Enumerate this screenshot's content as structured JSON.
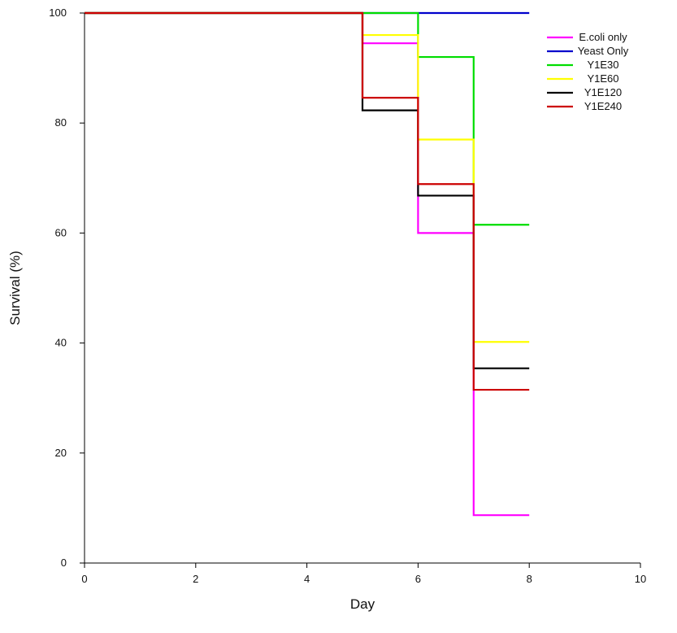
{
  "chart_data": {
    "type": "line",
    "step": true,
    "title": "",
    "xlabel": "Day",
    "ylabel": "Survival (%)",
    "xlim": [
      0,
      10
    ],
    "ylim": [
      0,
      100
    ],
    "x_ticks": [
      0,
      2,
      4,
      6,
      8,
      10
    ],
    "y_ticks": [
      0,
      20,
      40,
      60,
      80,
      100
    ],
    "grid": false,
    "legend_position": "top-right",
    "series": [
      {
        "name": "E.coli only",
        "color": "#ff00ff",
        "points": [
          [
            0,
            100
          ],
          [
            5,
            94.5
          ],
          [
            6,
            60
          ],
          [
            7,
            8.7
          ],
          [
            8,
            8.7
          ]
        ]
      },
      {
        "name": "Yeast Only",
        "color": "#0000cc",
        "points": [
          [
            0,
            100
          ],
          [
            8,
            100
          ]
        ]
      },
      {
        "name": "Y1E30",
        "color": "#00dd00",
        "points": [
          [
            0,
            100
          ],
          [
            6,
            92
          ],
          [
            7,
            61.5
          ],
          [
            8,
            61.5
          ]
        ]
      },
      {
        "name": "Y1E60",
        "color": "#ffff00",
        "points": [
          [
            0,
            100
          ],
          [
            5,
            96
          ],
          [
            6,
            77
          ],
          [
            7,
            40.2
          ],
          [
            8,
            40.2
          ]
        ]
      },
      {
        "name": "Y1E120",
        "color": "#000000",
        "points": [
          [
            0,
            100
          ],
          [
            5,
            82.3
          ],
          [
            6,
            66.8
          ],
          [
            7,
            35.4
          ],
          [
            8,
            35.4
          ]
        ]
      },
      {
        "name": "Y1E240",
        "color": "#cc0000",
        "points": [
          [
            0,
            100
          ],
          [
            5,
            84.6
          ],
          [
            6,
            68.9
          ],
          [
            7,
            31.5
          ],
          [
            8,
            31.5
          ]
        ]
      }
    ]
  }
}
